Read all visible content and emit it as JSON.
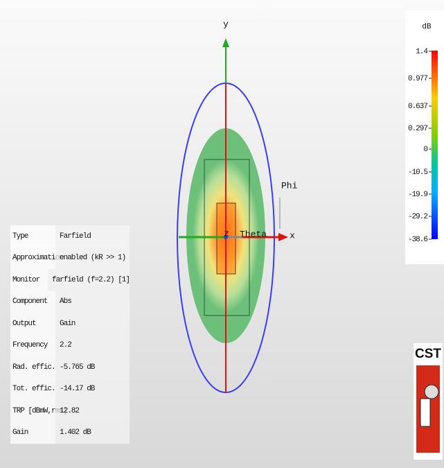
{
  "axes": {
    "x": "x",
    "y": "y",
    "z": "z",
    "phi": "Phi",
    "theta": "Theta"
  },
  "colorbar": {
    "unit": "dB",
    "ticks": [
      "1.4",
      "0.977",
      "0.637",
      "0.297",
      "0",
      "-10.5",
      "-19.9",
      "-29.2",
      "-38.6"
    ]
  },
  "logo": "CST",
  "info_table": {
    "rows": [
      [
        "Type",
        "Farfield"
      ],
      [
        "Approximation",
        "enabled (kR >> 1)"
      ],
      [
        "Monitor",
        "farfield (f=2.2) [1]"
      ],
      [
        "Component",
        "Abs"
      ],
      [
        "Output",
        "Gain"
      ],
      [
        "Frequency",
        "2.2"
      ],
      [
        "Rad. effic.",
        "-5.765 dB"
      ],
      [
        "Tot. effic.",
        "-14.17 dB"
      ],
      [
        "TRP [dBmW,rms]",
        "12.82"
      ],
      [
        "Gain",
        "1.402 dB"
      ]
    ]
  }
}
